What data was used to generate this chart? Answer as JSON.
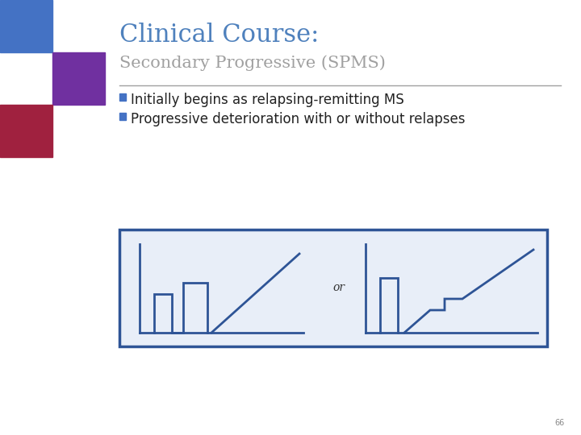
{
  "title_main": "Clinical Course:",
  "title_sub": "Secondary Progressive (SPMS)",
  "bullet1": "Initially begins as relapsing-remitting MS",
  "bullet2": "Progressive deterioration with or without relapses",
  "title_color": "#4F81BD",
  "subtitle_color": "#A0A0A0",
  "bullet_color": "#222222",
  "bullet_marker_color": "#4472C4",
  "line_color": "#2E5496",
  "box_border_color": "#2E5496",
  "box_bg_color": "#E8EEF8",
  "page_num": "66",
  "bg_color": "#FFFFFF",
  "sq1_color": "#4472C4",
  "sq2_color": "#7030A0",
  "sq3_color": "#A0213F",
  "sep_line_color": "#A0A0A0"
}
